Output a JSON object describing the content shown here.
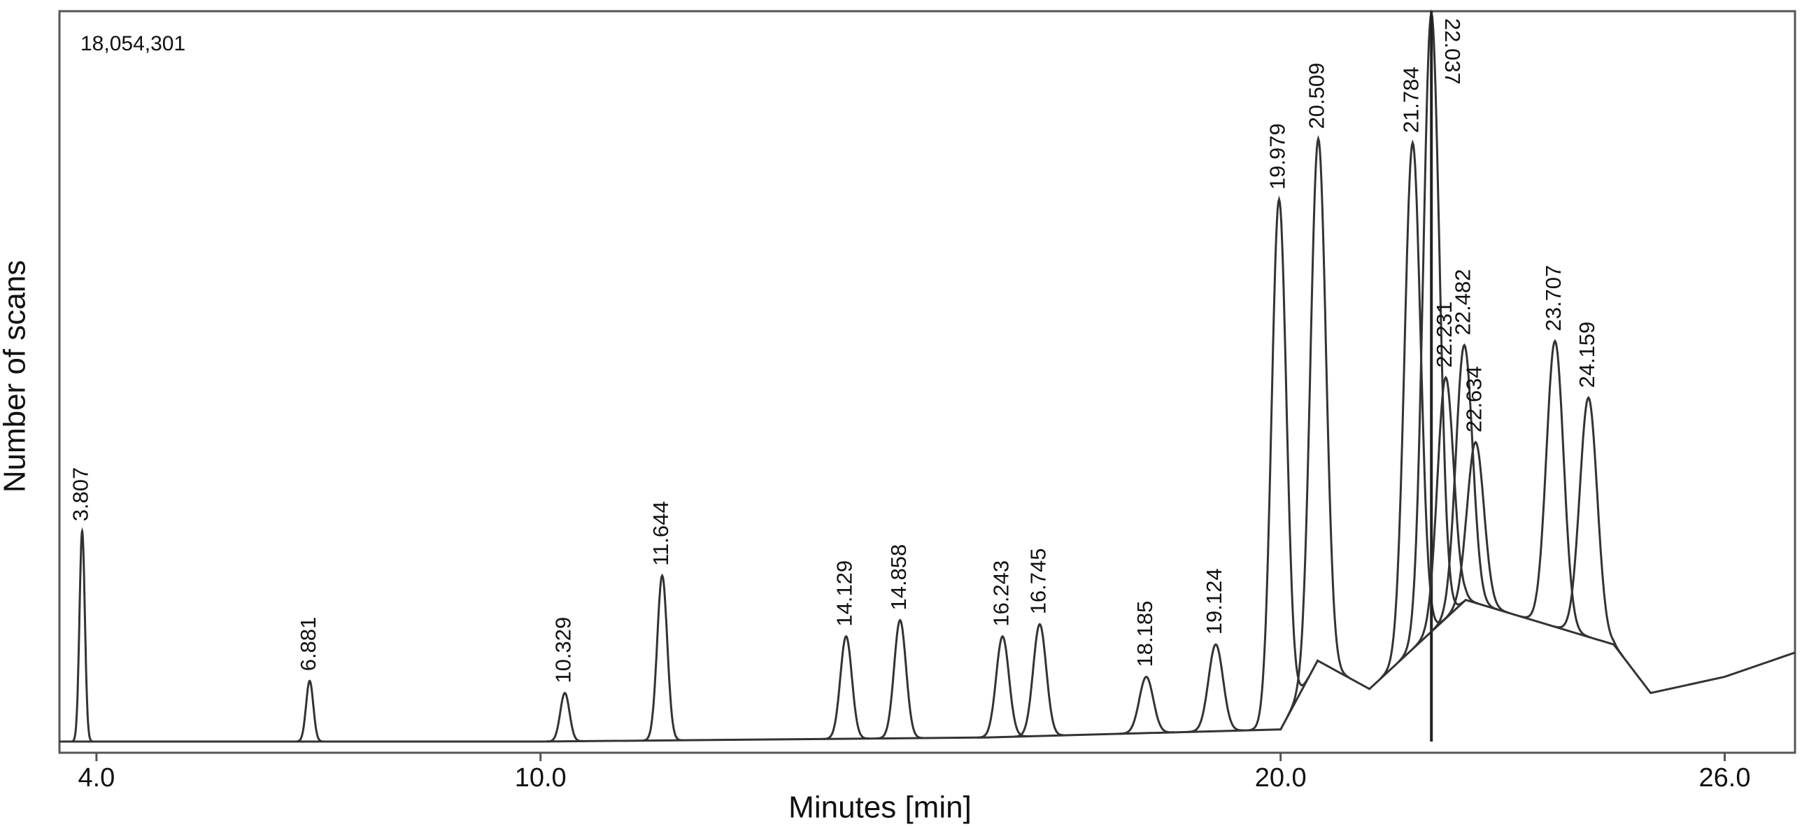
{
  "chart_data": {
    "type": "line",
    "x_label": "Minutes [min]",
    "y_label": "Number of scans",
    "annotation": "18,054,301",
    "xlim": [
      3.5,
      26.95
    ],
    "xticks": [
      {
        "value": 4,
        "label": "4.0"
      },
      {
        "value": 10,
        "label": "10.0"
      },
      {
        "value": 20,
        "label": "20.0"
      },
      {
        "value": 26,
        "label": "26.0"
      }
    ],
    "ylim": [
      0,
      18054301
    ],
    "color": "#333333",
    "peaks": {
      "x": [
        3.807,
        6.881,
        10.329,
        11.644,
        14.129,
        14.858,
        16.243,
        16.745,
        18.185,
        19.124,
        19.979,
        20.509,
        21.784,
        22.037,
        22.231,
        22.482,
        22.634,
        23.707,
        24.159
      ],
      "values": [
        5200000,
        1500000,
        1200000,
        4100000,
        2600000,
        3000000,
        2600000,
        2900000,
        1600000,
        2400000,
        13400000,
        14900000,
        14800000,
        18000000,
        9000000,
        9800000,
        7400000,
        9900000,
        8500000
      ]
    },
    "baseline": {
      "x": [
        3.5,
        10,
        16,
        20,
        20.5,
        21.2,
        22.5,
        24.5,
        25,
        26,
        26.95
      ],
      "values": [
        0,
        0,
        100000,
        300000,
        2000000,
        1300000,
        3500000,
        2400000,
        1200000,
        1600000,
        2200000
      ]
    }
  }
}
